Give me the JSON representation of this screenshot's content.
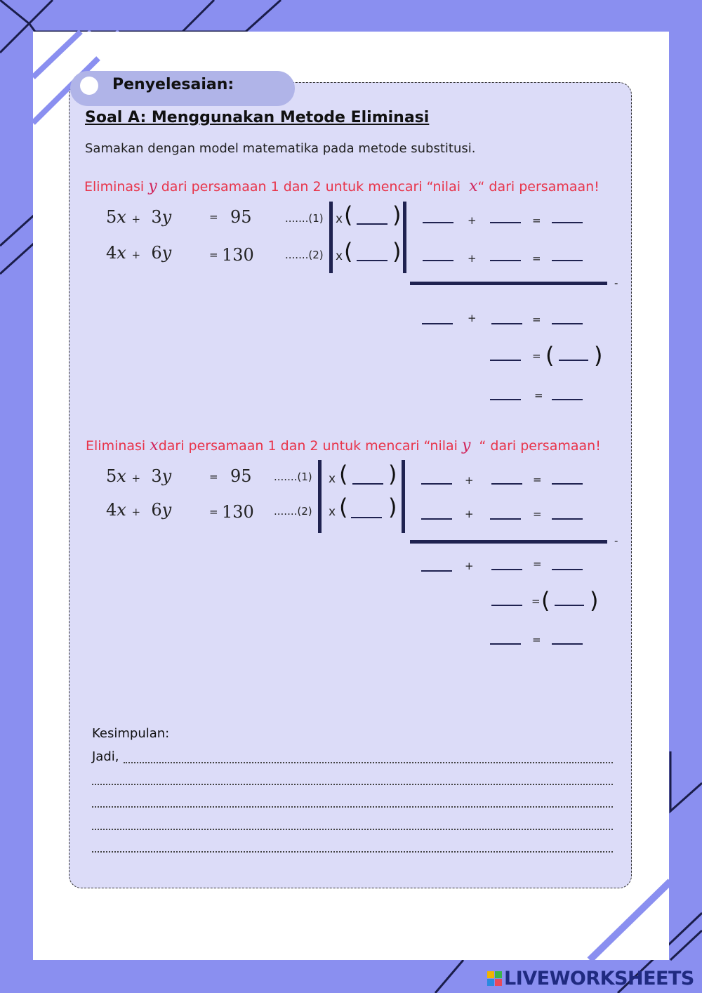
{
  "colors": {
    "background": "#8a8ff0",
    "panel": "#dcdcf8",
    "accent_dark": "#1f2250",
    "instruction_red": "#e8344a"
  },
  "header": {
    "pill_label": "Penyelesaian:"
  },
  "section": {
    "title": "Soal A: Menggunakan Metode Eliminasi",
    "intro": "Samakan dengan model matematika pada metode substitusi."
  },
  "block1": {
    "instr_pre": "Eliminasi",
    "instr_var1": "y",
    "instr_mid": "dari persamaan 1 dan 2 untuk mencari “nilai",
    "instr_var2": "x",
    "instr_post": "“ dari persamaan!"
  },
  "block2": {
    "instr_pre": "Eliminasi",
    "instr_var1": "x",
    "instr_mid": "dari persamaan 1 dan 2 untuk mencari “nilai",
    "instr_var2": "y",
    "instr_post": "“ dari persamaan!"
  },
  "equations": {
    "eq1": {
      "a": "5",
      "b": "3",
      "rhs": "95",
      "label": ".......(1)"
    },
    "eq2": {
      "a": "4",
      "b": "6",
      "rhs": "130",
      "label": ".......(2)"
    },
    "x": "x",
    "y": "y",
    "plus": "+",
    "equals": "=",
    "times": "x",
    "open": "(",
    "close": ")",
    "minus": "-"
  },
  "conclusion": {
    "label": "Kesimpulan:",
    "jadi": "Jadi,"
  },
  "logo": {
    "text": "LIVEWORKSHEETS"
  }
}
